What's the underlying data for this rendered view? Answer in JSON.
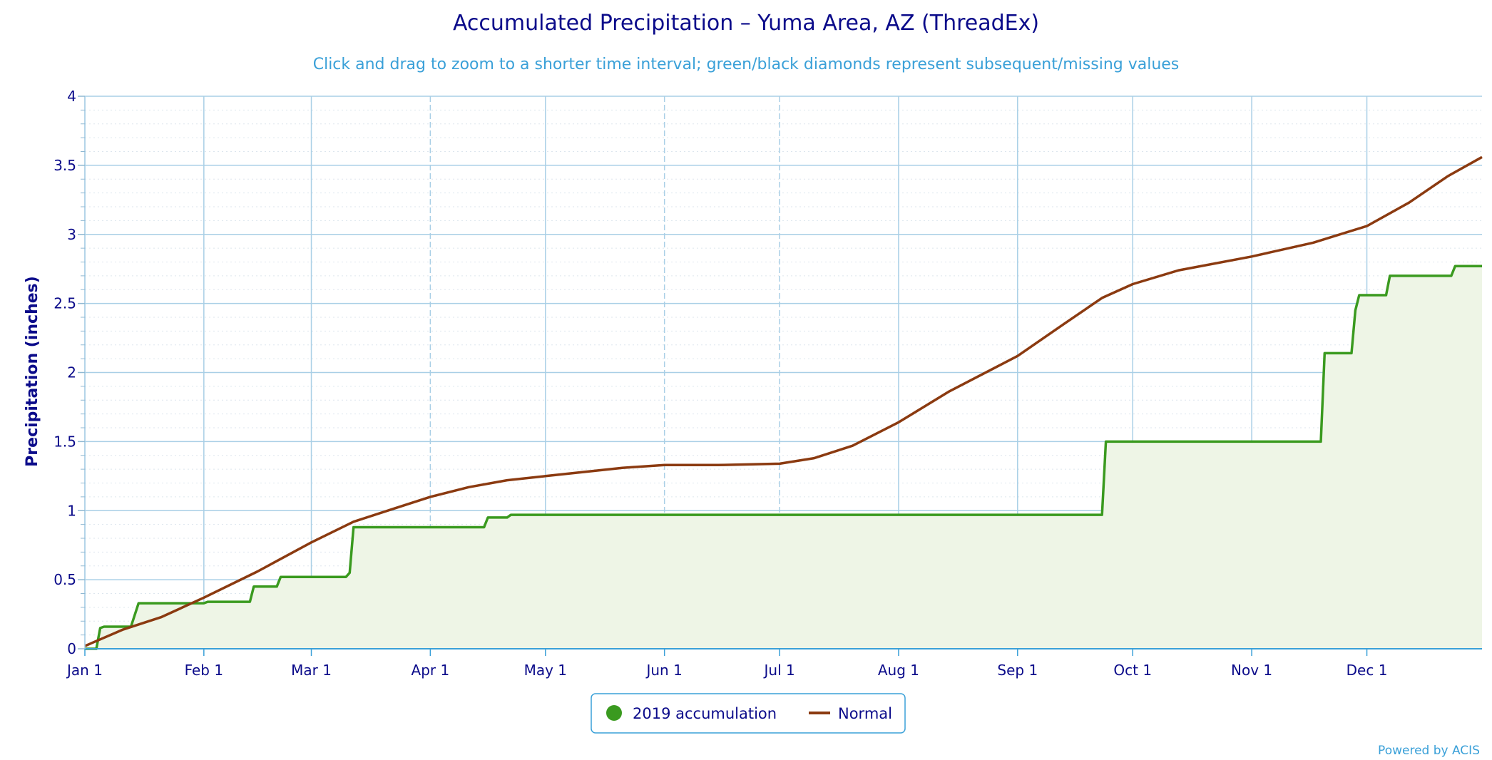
{
  "chart_data": {
    "type": "line",
    "title": "Accumulated Precipitation – Yuma Area, AZ (ThreadEx)",
    "subtitle": "Click and drag to zoom to a shorter time interval; green/black diamonds represent subsequent/missing values",
    "ylabel": "Precipitation (inches)",
    "ylim": [
      0,
      4
    ],
    "y_ticks": [
      "0",
      "0.5",
      "1",
      "1.5",
      "2",
      "2.5",
      "3",
      "3.5",
      "4"
    ],
    "x_ticks": [
      {
        "label": "Jan 1",
        "day": 0
      },
      {
        "label": "Feb 1",
        "day": 31
      },
      {
        "label": "Mar 1",
        "day": 59
      },
      {
        "label": "Apr 1",
        "day": 90
      },
      {
        "label": "May 1",
        "day": 120
      },
      {
        "label": "Jun 1",
        "day": 151
      },
      {
        "label": "Jul 1",
        "day": 181
      },
      {
        "label": "Aug 1",
        "day": 212
      },
      {
        "label": "Sep 1",
        "day": 243
      },
      {
        "label": "Oct 1",
        "day": 273
      },
      {
        "label": "Nov 1",
        "day": 304
      },
      {
        "label": "Dec 1",
        "day": 334
      }
    ],
    "xlim_days": [
      0,
      364
    ],
    "grid": true,
    "legend_position": "bottom-center",
    "series": [
      {
        "name": "2019 accumulation",
        "color": "#3a9a1f",
        "fill": "#eef5e6",
        "step": true,
        "points": [
          [
            0,
            0
          ],
          [
            3,
            0
          ],
          [
            4,
            0.15
          ],
          [
            5,
            0.16
          ],
          [
            12,
            0.16
          ],
          [
            14,
            0.33
          ],
          [
            31,
            0.33
          ],
          [
            32,
            0.34
          ],
          [
            43,
            0.34
          ],
          [
            44,
            0.45
          ],
          [
            50,
            0.45
          ],
          [
            51,
            0.52
          ],
          [
            68,
            0.52
          ],
          [
            69,
            0.55
          ],
          [
            70,
            0.88
          ],
          [
            104,
            0.88
          ],
          [
            105,
            0.95
          ],
          [
            110,
            0.95
          ],
          [
            111,
            0.97
          ],
          [
            265,
            0.97
          ],
          [
            266,
            1.5
          ],
          [
            322,
            1.5
          ],
          [
            323,
            2.14
          ],
          [
            330,
            2.14
          ],
          [
            331,
            2.45
          ],
          [
            332,
            2.56
          ],
          [
            339,
            2.56
          ],
          [
            340,
            2.7
          ],
          [
            356,
            2.7
          ],
          [
            357,
            2.77
          ],
          [
            364,
            2.77
          ]
        ]
      },
      {
        "name": "Normal",
        "color": "#8b3a10",
        "step": false,
        "points": [
          [
            0,
            0.02
          ],
          [
            10,
            0.14
          ],
          [
            20,
            0.23
          ],
          [
            31,
            0.37
          ],
          [
            45,
            0.56
          ],
          [
            59,
            0.77
          ],
          [
            70,
            0.92
          ],
          [
            80,
            1.01
          ],
          [
            90,
            1.1
          ],
          [
            100,
            1.17
          ],
          [
            110,
            1.22
          ],
          [
            120,
            1.25
          ],
          [
            130,
            1.28
          ],
          [
            140,
            1.31
          ],
          [
            151,
            1.33
          ],
          [
            165,
            1.33
          ],
          [
            181,
            1.34
          ],
          [
            190,
            1.38
          ],
          [
            200,
            1.47
          ],
          [
            212,
            1.64
          ],
          [
            225,
            1.86
          ],
          [
            243,
            2.12
          ],
          [
            255,
            2.35
          ],
          [
            265,
            2.54
          ],
          [
            273,
            2.64
          ],
          [
            285,
            2.74
          ],
          [
            304,
            2.84
          ],
          [
            320,
            2.94
          ],
          [
            334,
            3.06
          ],
          [
            345,
            3.23
          ],
          [
            355,
            3.42
          ],
          [
            364,
            3.56
          ]
        ]
      }
    ]
  },
  "credit": "Powered by ACIS"
}
